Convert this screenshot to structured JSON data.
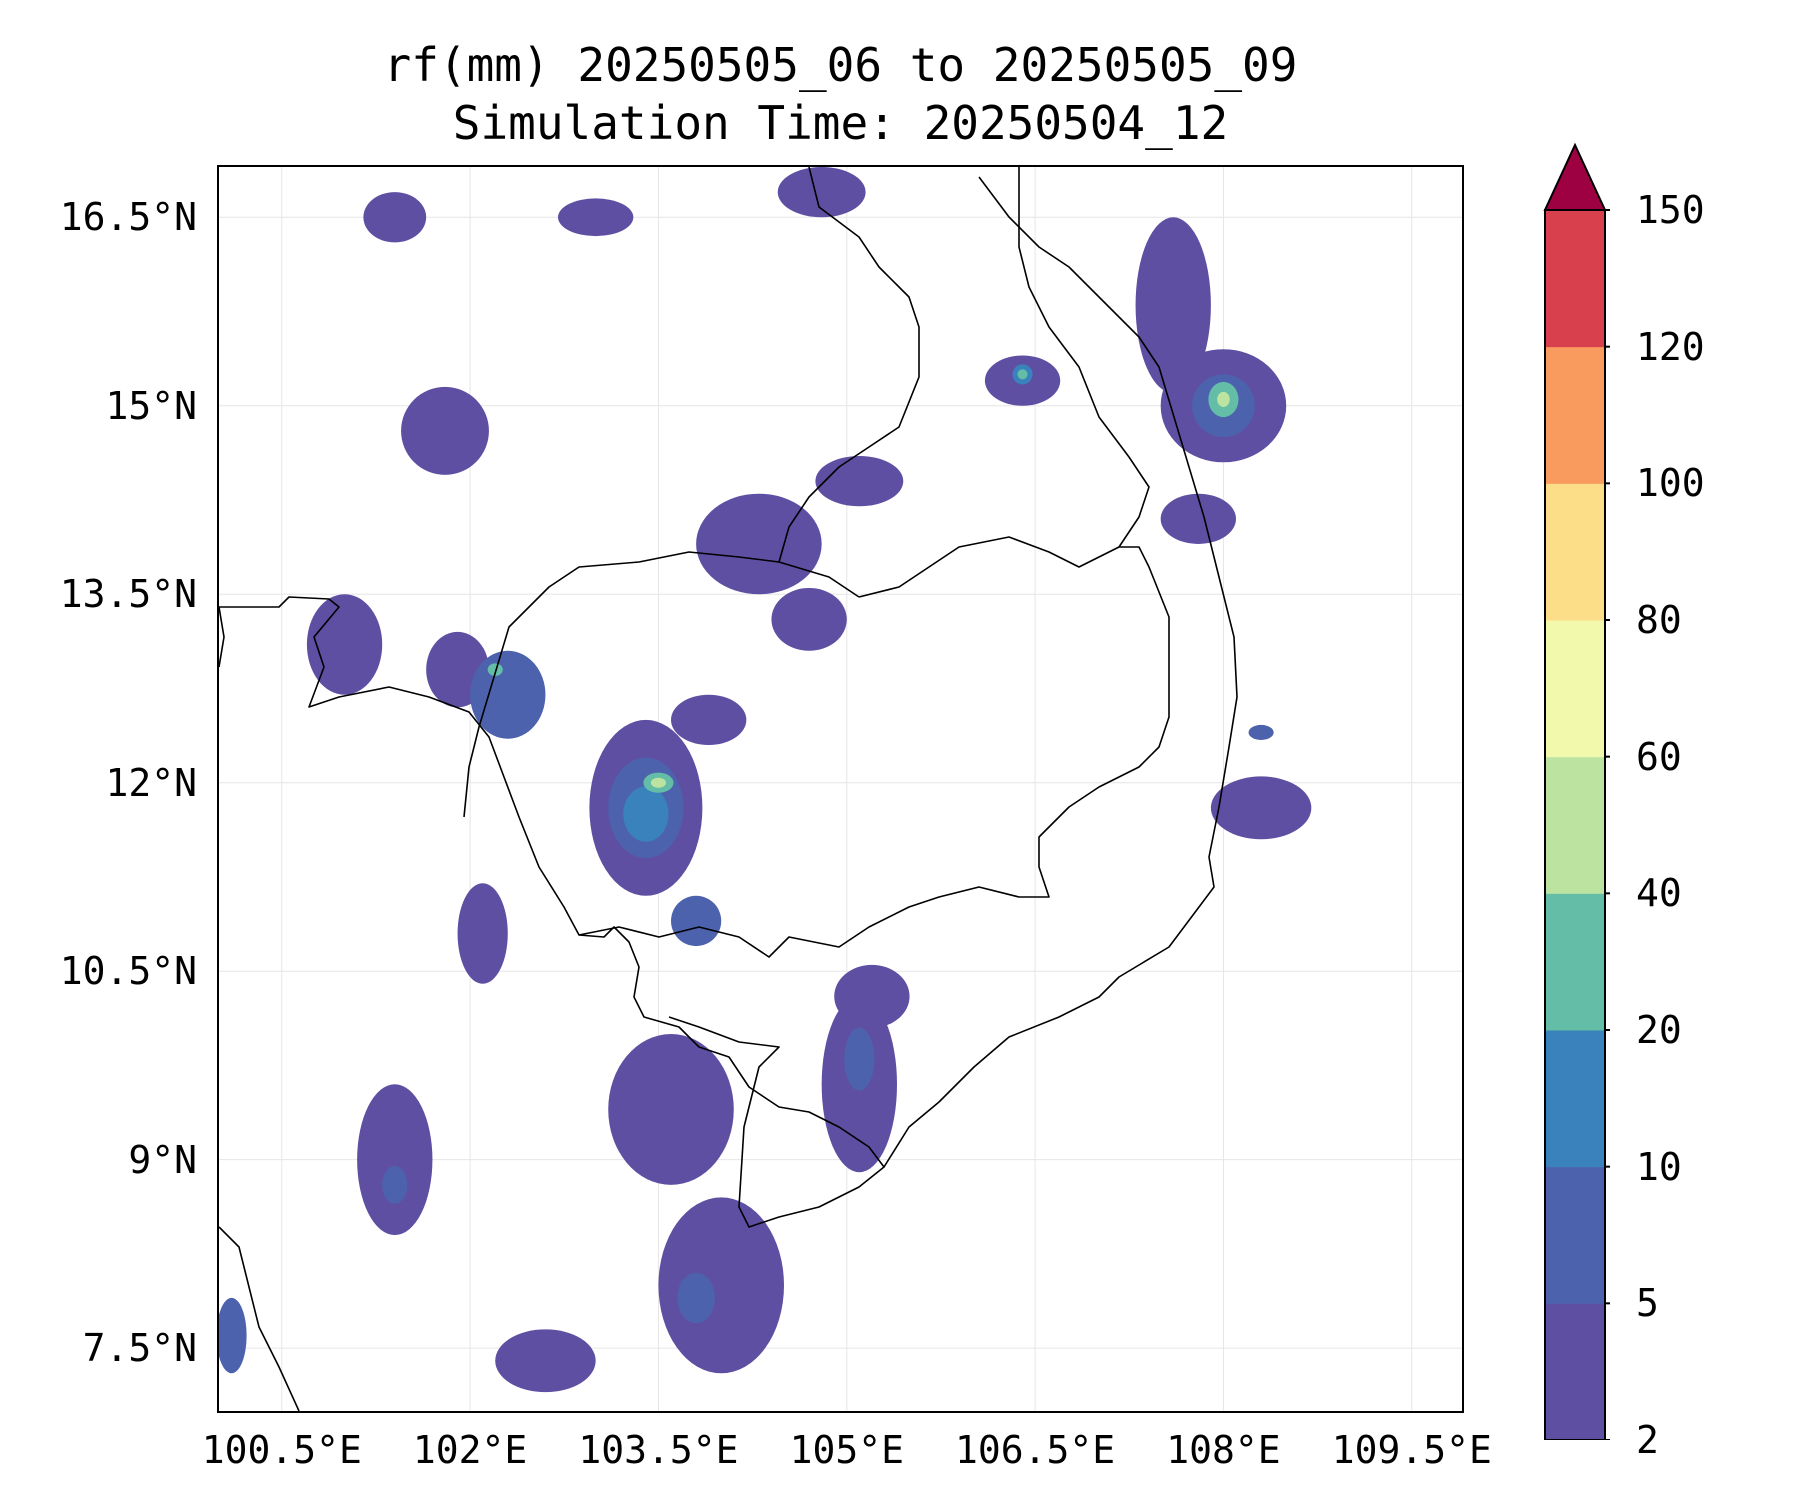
{
  "title": {
    "line1": "rf(mm) 20250505_06 to 20250505_09",
    "line2": "Simulation Time: 20250504_12"
  },
  "map": {
    "lon_range": [
      100.0,
      109.9
    ],
    "lat_range": [
      7.0,
      16.9
    ],
    "lat_ticks": [
      {
        "value": 16.5,
        "label": "16.5°N"
      },
      {
        "value": 15.0,
        "label": "15°N"
      },
      {
        "value": 13.5,
        "label": "13.5°N"
      },
      {
        "value": 12.0,
        "label": "12°N"
      },
      {
        "value": 10.5,
        "label": "10.5°N"
      },
      {
        "value": 9.0,
        "label": "9°N"
      },
      {
        "value": 7.5,
        "label": "7.5°N"
      }
    ],
    "lon_ticks": [
      {
        "value": 100.5,
        "label": "100.5°E"
      },
      {
        "value": 102.0,
        "label": "102°E"
      },
      {
        "value": 103.5,
        "label": "103.5°E"
      },
      {
        "value": 105.0,
        "label": "105°E"
      },
      {
        "value": 106.5,
        "label": "106.5°E"
      },
      {
        "value": 108.0,
        "label": "108°E"
      },
      {
        "value": 109.5,
        "label": "109.5°E"
      }
    ],
    "grid": true
  },
  "colorbar": {
    "levels": [
      "2",
      "5",
      "10",
      "20",
      "40",
      "60",
      "80",
      "100",
      "120",
      "150"
    ],
    "colors": [
      "#5e4fa2",
      "#4d62ad",
      "#3a82bb",
      "#63bda7",
      "#bce4a0",
      "#f2f9ad",
      "#fcdd88",
      "#f99b5e",
      "#d8404e"
    ],
    "extend_color": "#9e0142",
    "extend": "max"
  },
  "rain_fields": [
    {
      "lon": 101.8,
      "lat": 14.8,
      "rx": 0.35,
      "ry": 0.35,
      "level": 0
    },
    {
      "lon": 101.0,
      "lat": 13.1,
      "rx": 0.3,
      "ry": 0.4,
      "level": 0
    },
    {
      "lon": 101.9,
      "lat": 12.9,
      "rx": 0.25,
      "ry": 0.3,
      "level": 0
    },
    {
      "lon": 102.3,
      "lat": 12.7,
      "rx": 0.3,
      "ry": 0.35,
      "level": 1
    },
    {
      "lon": 102.2,
      "lat": 12.9,
      "rx": 0.06,
      "ry": 0.05,
      "level": 3
    },
    {
      "lon": 103.4,
      "lat": 11.8,
      "rx": 0.45,
      "ry": 0.7,
      "level": 0
    },
    {
      "lon": 103.4,
      "lat": 11.8,
      "rx": 0.3,
      "ry": 0.4,
      "level": 1
    },
    {
      "lon": 103.4,
      "lat": 11.75,
      "rx": 0.18,
      "ry": 0.22,
      "level": 2
    },
    {
      "lon": 103.5,
      "lat": 12.0,
      "rx": 0.12,
      "ry": 0.08,
      "level": 3
    },
    {
      "lon": 103.5,
      "lat": 12.0,
      "rx": 0.06,
      "ry": 0.04,
      "level": 4
    },
    {
      "lon": 104.3,
      "lat": 13.9,
      "rx": 0.5,
      "ry": 0.4,
      "level": 0
    },
    {
      "lon": 104.7,
      "lat": 13.3,
      "rx": 0.3,
      "ry": 0.25,
      "level": 0
    },
    {
      "lon": 103.9,
      "lat": 12.5,
      "rx": 0.3,
      "ry": 0.2,
      "level": 0
    },
    {
      "lon": 103.8,
      "lat": 10.9,
      "rx": 0.2,
      "ry": 0.2,
      "level": 1
    },
    {
      "lon": 106.4,
      "lat": 15.2,
      "rx": 0.3,
      "ry": 0.2,
      "level": 0
    },
    {
      "lon": 106.4,
      "lat": 15.25,
      "rx": 0.08,
      "ry": 0.08,
      "level": 2
    },
    {
      "lon": 106.4,
      "lat": 15.25,
      "rx": 0.04,
      "ry": 0.04,
      "level": 3
    },
    {
      "lon": 107.6,
      "lat": 15.8,
      "rx": 0.3,
      "ry": 0.7,
      "level": 0
    },
    {
      "lon": 108.0,
      "lat": 15.0,
      "rx": 0.5,
      "ry": 0.45,
      "level": 0
    },
    {
      "lon": 108.0,
      "lat": 15.0,
      "rx": 0.25,
      "ry": 0.25,
      "level": 1
    },
    {
      "lon": 108.0,
      "lat": 15.05,
      "rx": 0.12,
      "ry": 0.14,
      "level": 3
    },
    {
      "lon": 108.0,
      "lat": 15.05,
      "rx": 0.05,
      "ry": 0.06,
      "level": 4
    },
    {
      "lon": 108.3,
      "lat": 11.8,
      "rx": 0.4,
      "ry": 0.25,
      "level": 0
    },
    {
      "lon": 108.3,
      "lat": 12.4,
      "rx": 0.1,
      "ry": 0.06,
      "level": 1
    },
    {
      "lon": 105.1,
      "lat": 9.6,
      "rx": 0.3,
      "ry": 0.7,
      "level": 0
    },
    {
      "lon": 105.1,
      "lat": 9.8,
      "rx": 0.12,
      "ry": 0.25,
      "level": 1
    },
    {
      "lon": 105.2,
      "lat": 10.3,
      "rx": 0.3,
      "ry": 0.25,
      "level": 0
    },
    {
      "lon": 104.0,
      "lat": 8.0,
      "rx": 0.5,
      "ry": 0.7,
      "level": 0
    },
    {
      "lon": 103.8,
      "lat": 7.9,
      "rx": 0.15,
      "ry": 0.2,
      "level": 1
    },
    {
      "lon": 103.6,
      "lat": 9.4,
      "rx": 0.5,
      "ry": 0.6,
      "level": 0
    },
    {
      "lon": 101.4,
      "lat": 9.0,
      "rx": 0.3,
      "ry": 0.6,
      "level": 0
    },
    {
      "lon": 101.4,
      "lat": 8.8,
      "rx": 0.1,
      "ry": 0.15,
      "level": 1
    },
    {
      "lon": 102.1,
      "lat": 10.8,
      "rx": 0.2,
      "ry": 0.4,
      "level": 0
    },
    {
      "lon": 102.6,
      "lat": 7.4,
      "rx": 0.4,
      "ry": 0.25,
      "level": 0
    },
    {
      "lon": 101.4,
      "lat": 16.5,
      "rx": 0.25,
      "ry": 0.2,
      "level": 0
    },
    {
      "lon": 103.0,
      "lat": 16.5,
      "rx": 0.3,
      "ry": 0.15,
      "level": 0
    },
    {
      "lon": 104.8,
      "lat": 16.7,
      "rx": 0.35,
      "ry": 0.2,
      "level": 0
    },
    {
      "lon": 105.1,
      "lat": 14.4,
      "rx": 0.35,
      "ry": 0.2,
      "level": 0
    },
    {
      "lon": 107.8,
      "lat": 14.1,
      "rx": 0.3,
      "ry": 0.2,
      "level": 0
    },
    {
      "lon": 100.1,
      "lat": 7.6,
      "rx": 0.12,
      "ry": 0.3,
      "level": 1
    }
  ]
}
